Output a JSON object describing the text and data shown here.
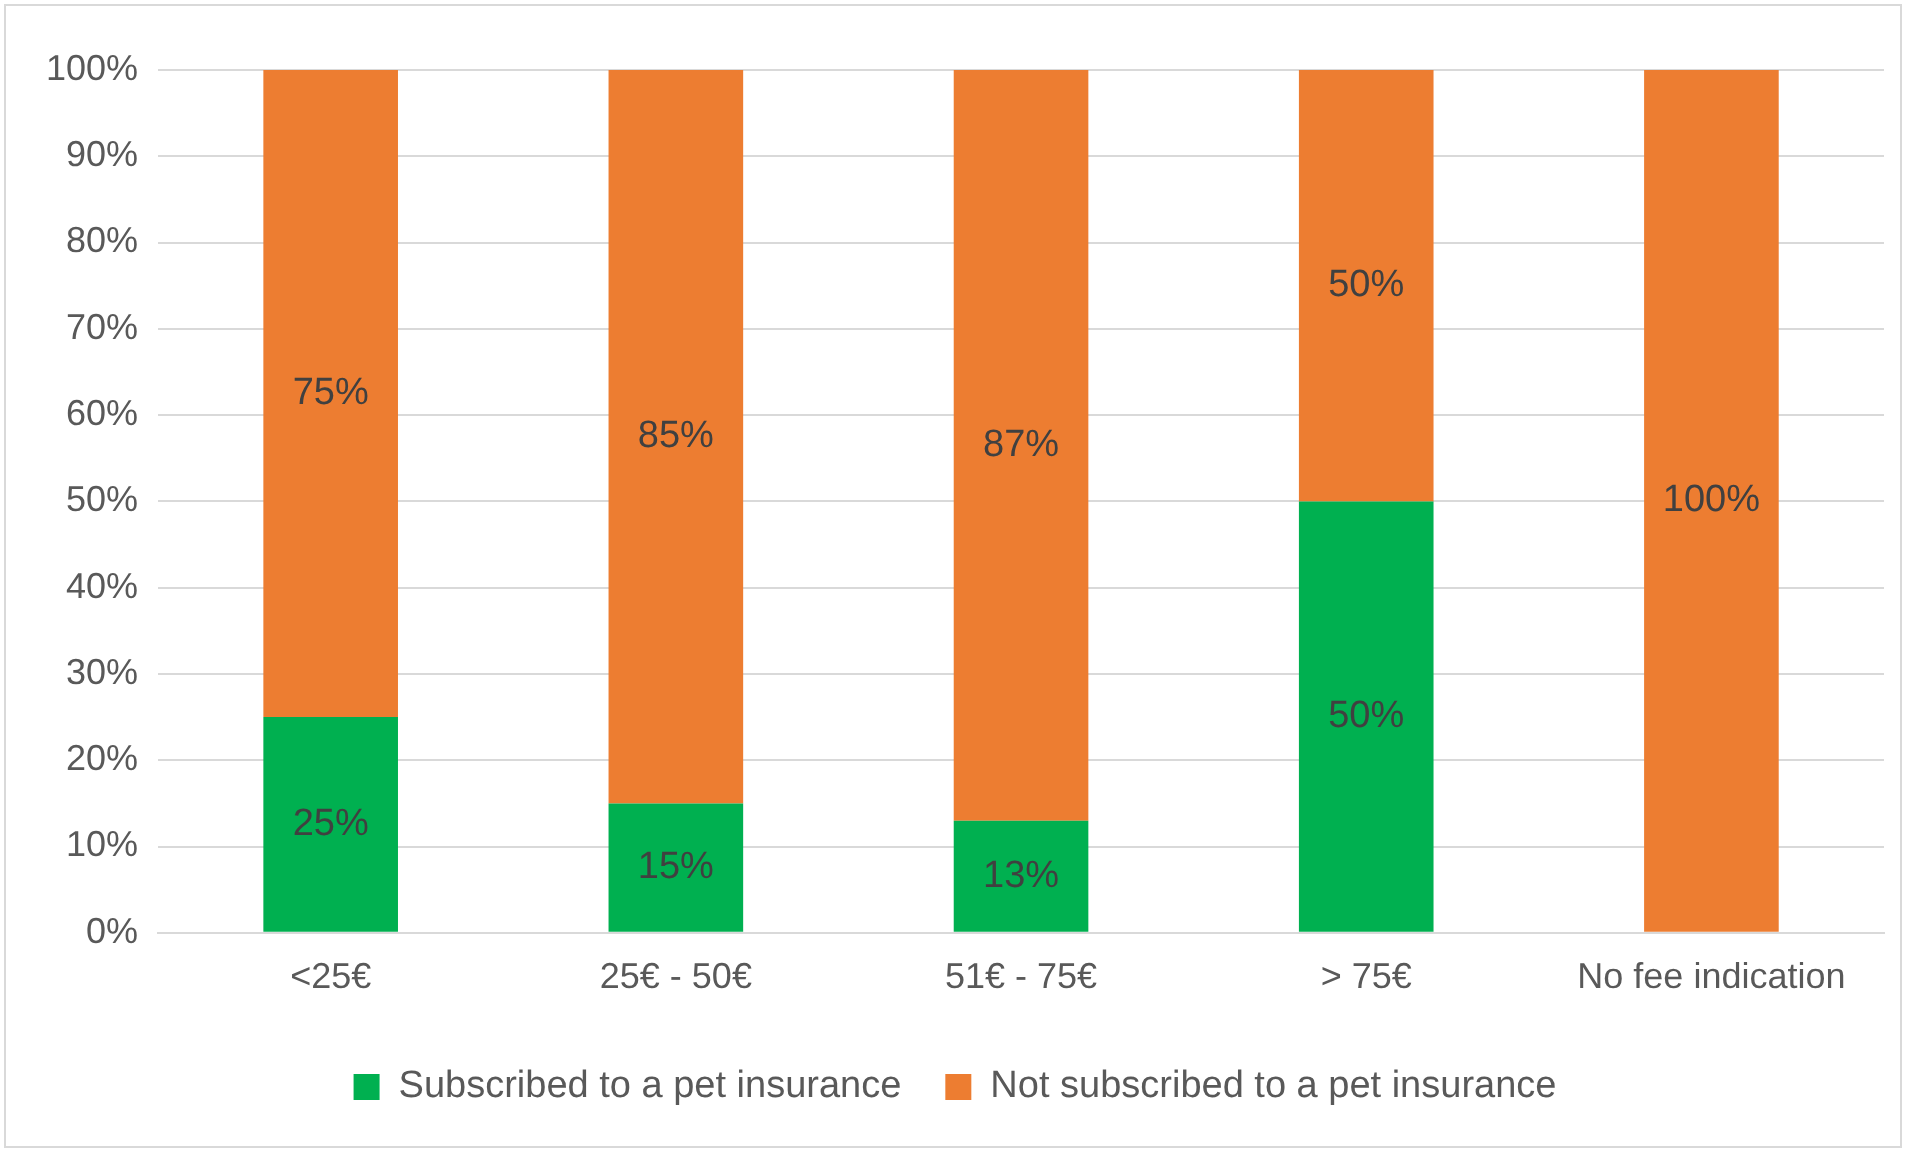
{
  "chart_data": {
    "type": "bar",
    "stacked": true,
    "categories": [
      "<25€",
      "25€ - 50€",
      "51€ - 75€",
      "> 75€",
      "No fee indication"
    ],
    "series": [
      {
        "name": "Subscribed to a pet insurance",
        "color": "#00b050",
        "values": [
          25,
          15,
          13,
          50,
          0
        ],
        "value_labels": [
          "25%",
          "15%",
          "13%",
          "50%",
          null
        ]
      },
      {
        "name": "Not subscribed to a pet insurance",
        "color": "#ed7d31",
        "values": [
          75,
          85,
          87,
          50,
          100
        ],
        "value_labels": [
          "75%",
          "85%",
          "87%",
          "50%",
          "100%"
        ]
      }
    ],
    "ylim": [
      0,
      100
    ],
    "yticks": [
      {
        "value": 0,
        "label": "0%"
      },
      {
        "value": 10,
        "label": "10%"
      },
      {
        "value": 20,
        "label": "20%"
      },
      {
        "value": 30,
        "label": "30%"
      },
      {
        "value": 40,
        "label": "40%"
      },
      {
        "value": 50,
        "label": "50%"
      },
      {
        "value": 60,
        "label": "60%"
      },
      {
        "value": 70,
        "label": "70%"
      },
      {
        "value": 80,
        "label": "80%"
      },
      {
        "value": 90,
        "label": "90%"
      },
      {
        "value": 100,
        "label": "100%"
      }
    ],
    "grid": "y",
    "legend": "bottom"
  }
}
